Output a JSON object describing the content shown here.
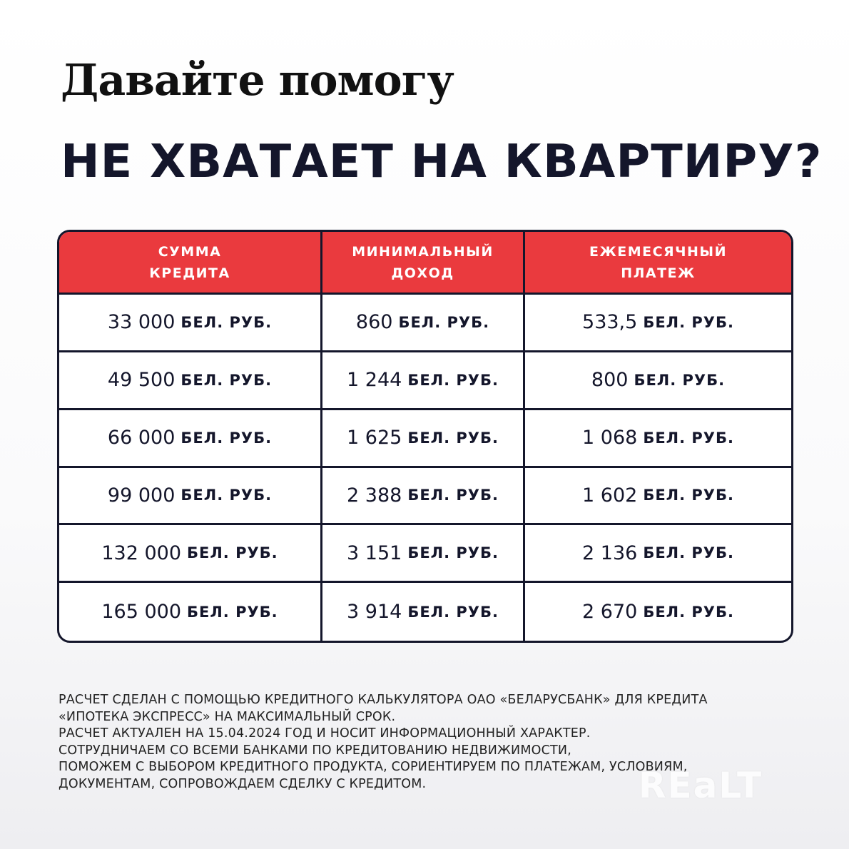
{
  "kicker": "Давайте помогу",
  "headline": "НЕ ХВАТАЕТ НА КВАРТИРУ?",
  "table": {
    "headers": [
      "СУММА\nКРЕДИТА",
      "МИНИМАЛЬНЫЙ\nДОХОД",
      "ЕЖЕМЕСЯЧНЫЙ\nПЛАТЕЖ"
    ],
    "unit": "БЕЛ. РУБ.",
    "rows": [
      [
        "33 000",
        "860",
        "533,5"
      ],
      [
        "49 500",
        "1 244",
        "800"
      ],
      [
        "66 000",
        "1 625",
        "1 068"
      ],
      [
        "99 000",
        "2 388",
        "1 602"
      ],
      [
        "132 000",
        "3 151",
        "2 136"
      ],
      [
        "165 000",
        "3 914",
        "2 670"
      ]
    ]
  },
  "note": "РАСЧЕТ СДЕЛАН С ПОМОЩЬЮ КРЕДИТНОГО КАЛЬКУЛЯТОРА ОАО «БЕЛАРУСБАНК» ДЛЯ КРЕДИТА\n«ИПОТЕКА ЭКСПРЕСС» НА МАКСИМАЛЬНЫЙ СРОК.\nРАСЧЕТ АКТУАЛЕН НА 15.04.2024 ГОД И НОСИТ ИНФОРМАЦИОННЫЙ ХАРАКТЕР.\nСОТРУДНИЧАЕМ СО ВСЕМИ БАНКАМИ ПО КРЕДИТОВАНИЮ НЕДВИЖИМОСТИ,\nПОМОЖЕМ С ВЫБОРОМ КРЕДИТНОГО ПРОДУКТА, СОРИЕНТИРУЕМ ПО ПЛАТЕЖАМ, УСЛОВИЯМ,\nДОКУМЕНТАМ, СОПРОВОЖДАЕМ СДЕЛКУ С КРЕДИТОМ.",
  "watermark": "REaLT",
  "colors": {
    "accent": "#ea3a3e",
    "ink": "#14162b"
  }
}
